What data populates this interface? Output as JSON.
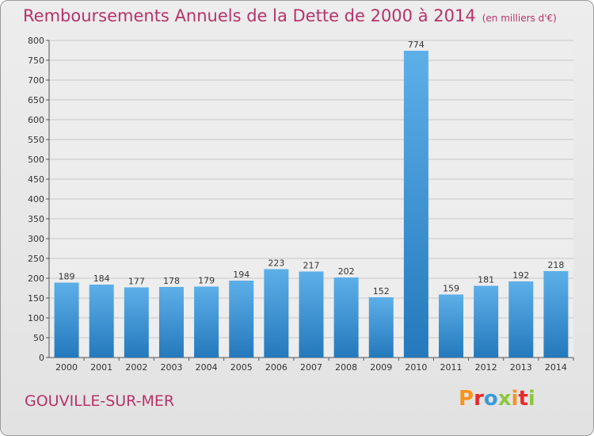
{
  "header": {
    "title": "Remboursements Annuels de la Dette de 2000 à 2014",
    "unit": "(en milliers d'€)"
  },
  "footer": {
    "city": "GOUVILLE-SUR-MER",
    "logo": "Proxiti",
    "logo_colors": [
      "#f7941d",
      "#e8292c",
      "#3a9ad9",
      "#8dc63f",
      "#f7941d",
      "#e8292c",
      "#8dc63f"
    ]
  },
  "colors": {
    "bar_light": "#5dafe8",
    "bar_dark": "#2479bc",
    "title": "#b5336a"
  },
  "chart_data": {
    "type": "bar",
    "categories": [
      "2000",
      "2001",
      "2002",
      "2003",
      "2004",
      "2005",
      "2006",
      "2007",
      "2008",
      "2009",
      "2010",
      "2011",
      "2012",
      "2013",
      "2014"
    ],
    "values": [
      189,
      184,
      177,
      178,
      179,
      194,
      223,
      217,
      202,
      152,
      774,
      159,
      181,
      192,
      218
    ],
    "title": "Remboursements Annuels de la Dette de 2000 à 2014",
    "ylim": [
      0,
      800
    ],
    "yticks": [
      0,
      50,
      100,
      150,
      200,
      250,
      300,
      350,
      400,
      450,
      500,
      550,
      600,
      650,
      700,
      750,
      800
    ],
    "grid": true,
    "data_labels": true
  }
}
